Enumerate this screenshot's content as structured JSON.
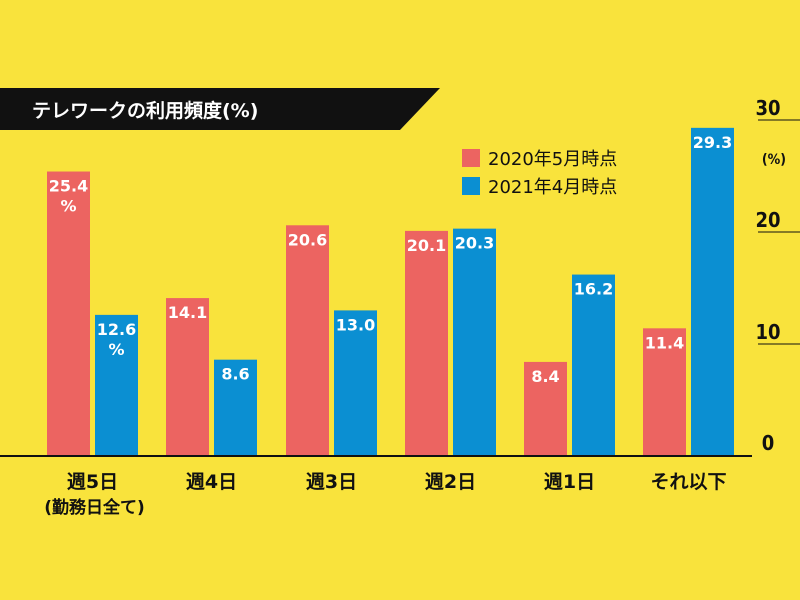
{
  "chart_data": {
    "type": "bar",
    "title": "テレワークの利用頻度(%)",
    "categories": [
      "週5日",
      "週4日",
      "週3日",
      "週2日",
      "週1日",
      "それ以下"
    ],
    "category_sublabels": [
      "(勤務日全て)",
      "",
      "",
      "",
      "",
      ""
    ],
    "series": [
      {
        "name": "2020年5月時点",
        "values": [
          25.4,
          14.1,
          20.6,
          20.1,
          8.4,
          11.4
        ],
        "color": "#ec6461"
      },
      {
        "name": "2021年4月時点",
        "values": [
          12.6,
          8.6,
          13.0,
          20.3,
          16.2,
          29.3
        ],
        "color": "#0b8fd2"
      }
    ],
    "data_labels": [
      [
        "25.4",
        "14.1",
        "20.6",
        "20.1",
        "8.4",
        "11.4"
      ],
      [
        "12.6",
        "8.6",
        "13.0",
        "20.3",
        "16.2",
        "29.3"
      ]
    ],
    "first_label_unit": "%",
    "ylim": [
      0,
      30
    ],
    "yticks": [
      "0",
      "10",
      "20",
      "30"
    ],
    "y_unit": "(%)",
    "legend_position": "top-right",
    "grid": false,
    "colors": {
      "background": "#f9e33c",
      "title_bar": "#111111",
      "axis": "#111111"
    }
  }
}
